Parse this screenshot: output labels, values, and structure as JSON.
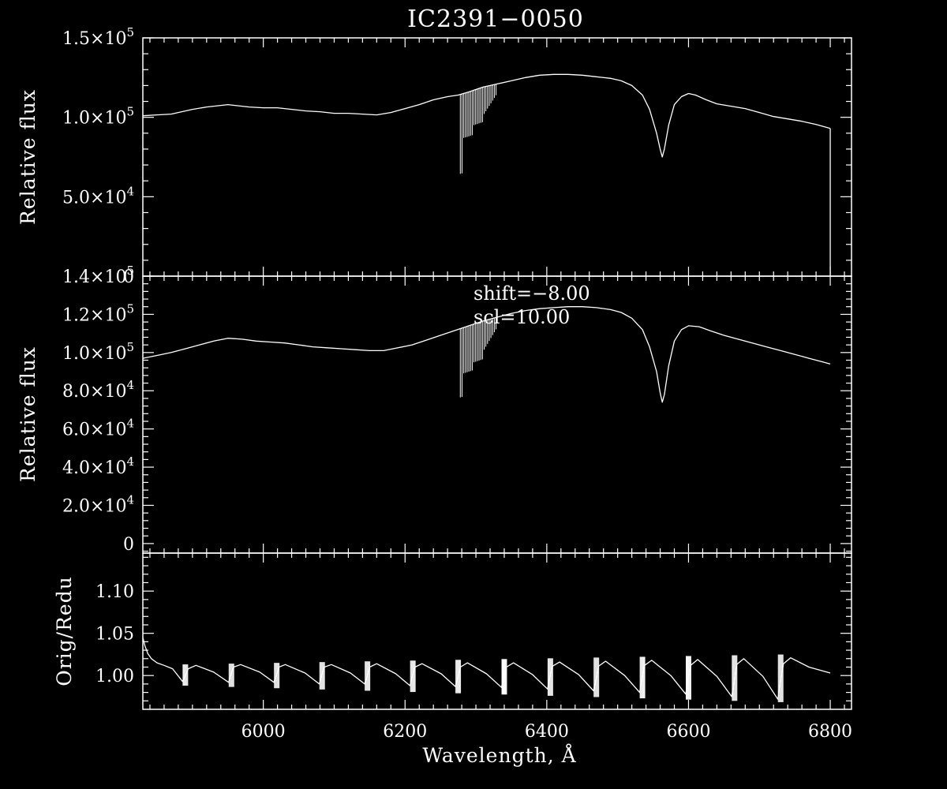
{
  "title": "IC2391−0050",
  "colors": {
    "background": "#000000",
    "foreground": "#ffffff"
  },
  "chart_data": [
    {
      "type": "line",
      "panel": "top",
      "ylabel": "Relative flux",
      "xlim": [
        5830,
        6830
      ],
      "ylim": [
        0,
        150000
      ],
      "yticks": [
        {
          "value": 0,
          "mantissa": "0",
          "exp": ""
        },
        {
          "value": 50000,
          "mantissa": "5.0×10",
          "exp": "4"
        },
        {
          "value": 100000,
          "mantissa": "1.0×10",
          "exp": "5"
        },
        {
          "value": 150000,
          "mantissa": "1.5×10",
          "exp": "5"
        }
      ],
      "series": [
        {
          "x": [
            5830,
            5850,
            5870,
            5890,
            5900,
            5920,
            5940,
            5950,
            5960,
            5980,
            6000,
            6020,
            6040,
            6060,
            6080,
            6100,
            6120,
            6140,
            6160,
            6180,
            6200,
            6220,
            6240,
            6260,
            6275,
            6290,
            6310,
            6330,
            6350,
            6370,
            6390,
            6410,
            6430,
            6450,
            6470,
            6490,
            6505,
            6520,
            6535,
            6545,
            6555,
            6560,
            6563,
            6566,
            6572,
            6580,
            6590,
            6600,
            6610,
            6625,
            6640,
            6660,
            6680,
            6700,
            6720,
            6740,
            6760,
            6780,
            6800
          ],
          "y": [
            101000,
            101500,
            102000,
            104000,
            105000,
            106500,
            107500,
            108000,
            107500,
            106500,
            106000,
            106000,
            105000,
            104000,
            103500,
            102500,
            102500,
            102000,
            101500,
            103000,
            105500,
            108000,
            111000,
            113000,
            114000,
            116000,
            119000,
            121000,
            123000,
            125000,
            126500,
            127000,
            127000,
            126500,
            125500,
            124500,
            123000,
            120000,
            114000,
            105000,
            90000,
            80000,
            75000,
            80000,
            95000,
            108000,
            113000,
            115000,
            114000,
            111000,
            108500,
            107000,
            105500,
            103000,
            100500,
            99000,
            97500,
            95500,
            93000
          ]
        }
      ]
    },
    {
      "type": "line",
      "panel": "middle",
      "ylabel": "Relative flux",
      "xlim": [
        5830,
        6830
      ],
      "ylim": [
        -5000,
        140000
      ],
      "yticks": [
        {
          "value": 0,
          "mantissa": "0",
          "exp": ""
        },
        {
          "value": 20000,
          "mantissa": "2.0×10",
          "exp": "4"
        },
        {
          "value": 40000,
          "mantissa": "4.0×10",
          "exp": "4"
        },
        {
          "value": 60000,
          "mantissa": "6.0×10",
          "exp": "4"
        },
        {
          "value": 80000,
          "mantissa": "8.0×10",
          "exp": "4"
        },
        {
          "value": 100000,
          "mantissa": "1.0×10",
          "exp": "5"
        },
        {
          "value": 120000,
          "mantissa": "1.2×10",
          "exp": "5"
        },
        {
          "value": 140000,
          "mantissa": "1.4×10",
          "exp": "5"
        }
      ],
      "annotations": [
        "shift=−8.00",
        "scl=10.00"
      ],
      "series": [
        {
          "x": [
            5830,
            5850,
            5870,
            5890,
            5910,
            5930,
            5950,
            5970,
            5990,
            6010,
            6030,
            6050,
            6070,
            6090,
            6110,
            6130,
            6150,
            6170,
            6190,
            6210,
            6230,
            6250,
            6270,
            6290,
            6310,
            6330,
            6350,
            6370,
            6390,
            6410,
            6430,
            6450,
            6470,
            6490,
            6505,
            6520,
            6535,
            6545,
            6555,
            6560,
            6563,
            6566,
            6572,
            6580,
            6590,
            6600,
            6615,
            6630,
            6650,
            6670,
            6690,
            6710,
            6730,
            6750,
            6770,
            6790,
            6800
          ],
          "y": [
            97000,
            98500,
            100000,
            102000,
            104000,
            106000,
            107500,
            107000,
            106000,
            105500,
            105000,
            104000,
            103000,
            102500,
            102000,
            101500,
            101000,
            101000,
            102500,
            104000,
            106500,
            109000,
            111500,
            114000,
            116500,
            118500,
            120500,
            122000,
            123000,
            123500,
            124000,
            124000,
            123500,
            122500,
            121000,
            118000,
            112000,
            103000,
            90000,
            79000,
            74000,
            78000,
            93000,
            106000,
            112000,
            114000,
            113500,
            111500,
            109000,
            107000,
            105000,
            103000,
            101000,
            99000,
            97000,
            95000,
            94000
          ]
        }
      ]
    },
    {
      "type": "line",
      "panel": "bottom",
      "ylabel": "Orig/Redu",
      "xlabel": "Wavelength, Å",
      "xlim": [
        5830,
        6830
      ],
      "ylim": [
        0.96,
        1.145
      ],
      "yticks": [
        {
          "value": 1.0,
          "mantissa": "1.00",
          "exp": ""
        },
        {
          "value": 1.05,
          "mantissa": "1.05",
          "exp": ""
        },
        {
          "value": 1.1,
          "mantissa": "1.10",
          "exp": ""
        }
      ],
      "xticks": [
        6000,
        6200,
        6400,
        6600,
        6800
      ],
      "xtick_labels": [
        "6000",
        "6200",
        "6400",
        "6600",
        "6800"
      ],
      "series": [
        {
          "x": [
            5830,
            5833,
            5837,
            5842,
            5850,
            5860,
            5872,
            5886,
            5894,
            5905,
            5930,
            5951,
            5958,
            5968,
            5995,
            6015,
            6022,
            6031,
            6059,
            6079,
            6086,
            6096,
            6123,
            6143,
            6150,
            6160,
            6187,
            6207,
            6214,
            6224,
            6251,
            6271,
            6278,
            6288,
            6315,
            6336,
            6343,
            6353,
            6380,
            6401,
            6408,
            6418,
            6445,
            6466,
            6473,
            6483,
            6510,
            6531,
            6538,
            6548,
            6575,
            6596,
            6603,
            6613,
            6640,
            6661,
            6668,
            6678,
            6705,
            6726,
            6734,
            6744,
            6770,
            6800
          ],
          "y": [
            1.045,
            1.035,
            1.026,
            1.02,
            1.015,
            1.012,
            1.008,
            0.993,
            1.008,
            1.012,
            1.004,
            0.992,
            1.01,
            1.013,
            1.004,
            0.992,
            1.01,
            1.013,
            1.003,
            0.99,
            1.01,
            1.013,
            1.003,
            0.99,
            1.01,
            1.014,
            1.002,
            0.988,
            1.01,
            1.014,
            1.002,
            0.987,
            1.01,
            1.015,
            1.002,
            0.986,
            1.01,
            1.015,
            1.001,
            0.984,
            1.011,
            1.016,
            1.001,
            0.982,
            1.011,
            1.017,
            1.0,
            0.98,
            1.012,
            1.018,
            1.0,
            0.978,
            1.012,
            1.019,
            0.999,
            0.975,
            1.013,
            1.02,
            0.999,
            0.972,
            1.014,
            1.021,
            1.01,
            1.003
          ]
        }
      ]
    }
  ]
}
